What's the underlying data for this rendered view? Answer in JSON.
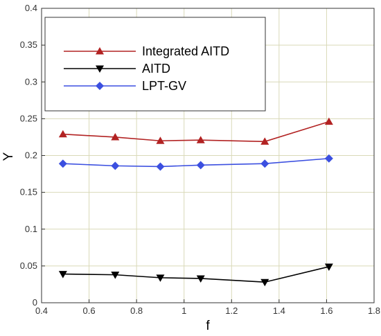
{
  "chart_data": {
    "type": "line",
    "xlabel": "f",
    "ylabel": "Y",
    "xlim": [
      0.4,
      1.8
    ],
    "ylim": [
      0,
      0.4
    ],
    "x_ticks": [
      "0.4",
      "0.6",
      "0.8",
      "1",
      "1.2",
      "1.4",
      "1.6",
      "1.8"
    ],
    "y_ticks": [
      "0",
      "0.05",
      "0.1",
      "0.15",
      "0.2",
      "0.25",
      "0.3",
      "0.35",
      "0.4"
    ],
    "grid": true,
    "legend_position": "top-left",
    "series": [
      {
        "name": "Integrated AITD",
        "color": "#b22222",
        "marker": "triangle-up",
        "x": [
          0.49,
          0.71,
          0.9,
          1.07,
          1.34,
          1.61
        ],
        "y": [
          0.229,
          0.225,
          0.22,
          0.221,
          0.219,
          0.246
        ]
      },
      {
        "name": "AITD",
        "color": "#000000",
        "marker": "triangle-down",
        "x": [
          0.49,
          0.71,
          0.9,
          1.07,
          1.34,
          1.61
        ],
        "y": [
          0.039,
          0.038,
          0.034,
          0.033,
          0.028,
          0.049
        ]
      },
      {
        "name": "LPT-GV",
        "color": "#3b4fe0",
        "marker": "diamond",
        "x": [
          0.49,
          0.71,
          0.9,
          1.07,
          1.34,
          1.61
        ],
        "y": [
          0.189,
          0.186,
          0.185,
          0.187,
          0.189,
          0.196
        ]
      }
    ]
  }
}
